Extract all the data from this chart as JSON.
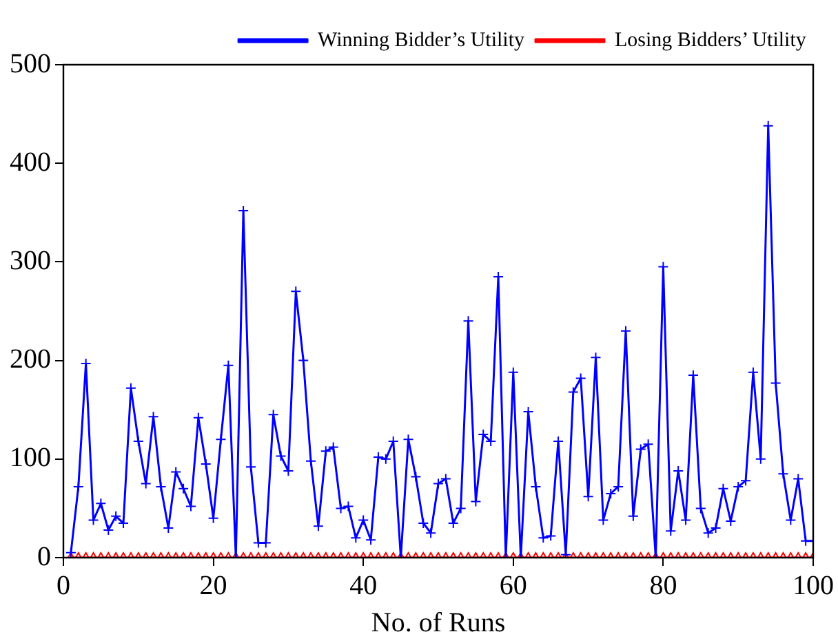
{
  "chart_data": {
    "type": "line",
    "xlabel": "No. of Runs",
    "x": [
      1,
      2,
      3,
      4,
      5,
      6,
      7,
      8,
      9,
      10,
      11,
      12,
      13,
      14,
      15,
      16,
      17,
      18,
      19,
      20,
      21,
      22,
      23,
      24,
      25,
      26,
      27,
      28,
      29,
      30,
      31,
      32,
      33,
      34,
      35,
      36,
      37,
      38,
      39,
      40,
      41,
      42,
      43,
      44,
      45,
      46,
      47,
      48,
      49,
      50,
      51,
      52,
      53,
      54,
      55,
      56,
      57,
      58,
      59,
      60,
      61,
      62,
      63,
      64,
      65,
      66,
      67,
      68,
      69,
      70,
      71,
      72,
      73,
      74,
      75,
      76,
      77,
      78,
      79,
      80,
      81,
      82,
      83,
      84,
      85,
      86,
      87,
      88,
      89,
      90,
      91,
      92,
      93,
      94,
      95,
      96,
      97,
      98,
      99,
      100
    ],
    "series": [
      {
        "name": "Winning Bidder’s Utility",
        "color": "#0000ff",
        "marker": "cross",
        "values": [
          5,
          72,
          197,
          38,
          55,
          28,
          42,
          35,
          172,
          118,
          75,
          143,
          72,
          30,
          87,
          70,
          52,
          142,
          95,
          40,
          120,
          195,
          0,
          352,
          92,
          15,
          15,
          145,
          103,
          88,
          270,
          200,
          98,
          32,
          108,
          112,
          50,
          52,
          20,
          38,
          18,
          102,
          100,
          118,
          0,
          120,
          82,
          35,
          25,
          75,
          80,
          35,
          50,
          240,
          57,
          125,
          118,
          285,
          0,
          188,
          0,
          148,
          72,
          20,
          22,
          118,
          3,
          168,
          182,
          62,
          203,
          38,
          65,
          72,
          230,
          42,
          110,
          115,
          0,
          295,
          27,
          88,
          38,
          185,
          50,
          25,
          30,
          70,
          37,
          72,
          78,
          188,
          100,
          438,
          177,
          85,
          38,
          80,
          17,
          17
        ]
      },
      {
        "name": "Losing Bidders’ Utility",
        "color": "#ff0000",
        "marker": "triangle",
        "values": [
          0,
          0,
          0,
          0,
          0,
          0,
          0,
          0,
          0,
          0,
          0,
          0,
          0,
          0,
          0,
          0,
          0,
          0,
          0,
          0,
          0,
          0,
          0,
          0,
          0,
          0,
          0,
          0,
          0,
          0,
          0,
          0,
          0,
          0,
          0,
          0,
          0,
          0,
          0,
          0,
          0,
          0,
          0,
          0,
          0,
          0,
          0,
          0,
          0,
          0,
          0,
          0,
          0,
          0,
          0,
          0,
          0,
          0,
          0,
          0,
          0,
          0,
          0,
          0,
          0,
          0,
          0,
          0,
          0,
          0,
          0,
          0,
          0,
          0,
          0,
          0,
          0,
          0,
          0,
          0,
          0,
          0,
          0,
          0,
          0,
          0,
          0,
          0,
          0,
          0,
          0,
          0,
          0,
          0,
          0,
          0,
          0,
          0,
          0,
          0
        ]
      }
    ],
    "xlim": [
      0,
      100
    ],
    "xticks": [
      0,
      20,
      40,
      60,
      80,
      100
    ],
    "ylim": [
      0,
      500
    ],
    "yticks": [
      0,
      100,
      200,
      300,
      400,
      500
    ],
    "grid": false,
    "legend": "top right",
    "line_style": "solid"
  }
}
